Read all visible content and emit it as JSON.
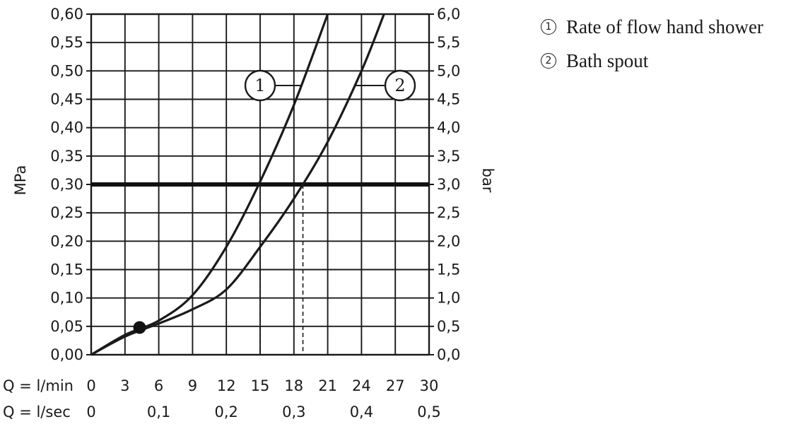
{
  "chart_data": {
    "type": "line",
    "y_left_label": "MPa",
    "y_right_label": "bar",
    "y_left_ticks": [
      "0,00",
      "0,05",
      "0,10",
      "0,15",
      "0,20",
      "0,25",
      "0,30",
      "0,35",
      "0,40",
      "0,45",
      "0,50",
      "0,55",
      "0,60"
    ],
    "y_right_ticks": [
      "0,0",
      "0,5",
      "1,0",
      "1,5",
      "2,0",
      "2,5",
      "3,0",
      "3,5",
      "4,0",
      "4,5",
      "5,0",
      "5,5",
      "6,0"
    ],
    "x_row1_label": "Q = l/min",
    "x_row1_ticks": [
      "0",
      "3",
      "6",
      "9",
      "12",
      "15",
      "18",
      "21",
      "24",
      "27",
      "30"
    ],
    "x_row2_label": "Q = l/sec",
    "x_row2_ticks": [
      "0",
      "0,1",
      "0,2",
      "0,3",
      "0,4",
      "0,5"
    ],
    "xlim": [
      0,
      30
    ],
    "ylim": [
      0,
      0.6
    ],
    "grid": true,
    "reference_line": {
      "y": 0.3
    },
    "marker_point": {
      "x": 4.3,
      "y": 0.048
    },
    "series": [
      {
        "id": "1",
        "marker_label": "1",
        "name": "Rate of flow hand shower",
        "points": [
          [
            0,
            0
          ],
          [
            3,
            0.035
          ],
          [
            6,
            0.06
          ],
          [
            9,
            0.105
          ],
          [
            12,
            0.19
          ],
          [
            15,
            0.305
          ],
          [
            18,
            0.44
          ],
          [
            21,
            0.6
          ]
        ],
        "drop_x": 15.0
      },
      {
        "id": "2",
        "marker_label": "2",
        "name": "Bath spout",
        "points": [
          [
            0,
            0
          ],
          [
            3,
            0.032
          ],
          [
            6,
            0.055
          ],
          [
            9,
            0.08
          ],
          [
            12,
            0.115
          ],
          [
            15,
            0.19
          ],
          [
            18,
            0.275
          ],
          [
            21,
            0.375
          ],
          [
            24,
            0.5
          ],
          [
            26,
            0.6
          ]
        ],
        "drop_x": 18.8
      }
    ]
  },
  "legend": [
    {
      "num": "1",
      "text": "Rate of flow hand shower"
    },
    {
      "num": "2",
      "text": "Bath spout"
    }
  ]
}
